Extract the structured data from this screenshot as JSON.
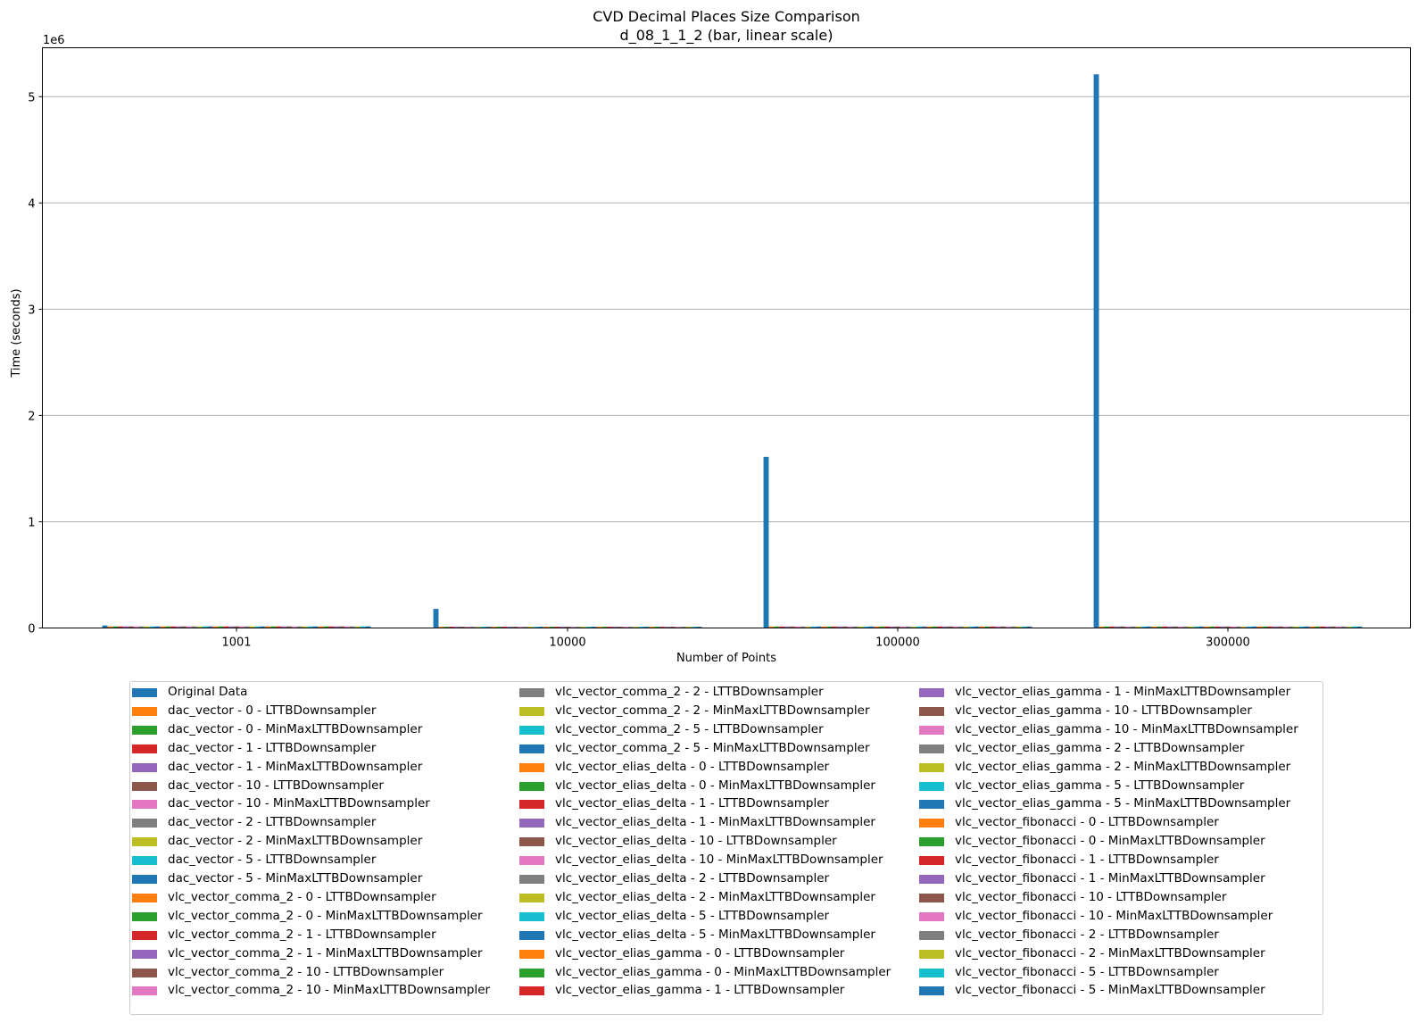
{
  "chart_data": {
    "type": "bar",
    "title": "CVD Decimal Places Size Comparison",
    "subtitle": "d_08_1_1_2 (bar, linear scale)",
    "xlabel": "Number of Points",
    "ylabel": "Time (seconds)",
    "y_offset_label": "1e6",
    "categories": [
      "1001",
      "10000",
      "100000",
      "300000"
    ],
    "ylim": [
      0,
      5460000
    ],
    "yticks": [
      0,
      1,
      2,
      3,
      4,
      5
    ],
    "ytick_multiplier": 1000000,
    "grid": "horizontal",
    "legend_placement": "below plot, 3 columns",
    "palette": [
      "#1f77b4",
      "#ff7f0e",
      "#2ca02c",
      "#d62728",
      "#9467bd",
      "#8c564b",
      "#e377c2",
      "#7f7f7f",
      "#bcbd22",
      "#17becf"
    ],
    "series": [
      {
        "name": "Original Data",
        "values": [
          24000,
          180000,
          1610000,
          5210000
        ]
      },
      {
        "name": "dac_vector - 0 - LTTBDownsampler",
        "values": [
          15000,
          12000,
          14000,
          14000
        ]
      },
      {
        "name": "dac_vector - 0 - MinMaxLTTBDownsampler",
        "values": [
          15000,
          12000,
          14000,
          14000
        ]
      },
      {
        "name": "dac_vector - 1 - LTTBDownsampler",
        "values": [
          15000,
          12000,
          14000,
          14000
        ]
      },
      {
        "name": "dac_vector - 1 - MinMaxLTTBDownsampler",
        "values": [
          15000,
          12000,
          14000,
          14000
        ]
      },
      {
        "name": "dac_vector - 10 - LTTBDownsampler",
        "values": [
          15000,
          12000,
          14000,
          14000
        ]
      },
      {
        "name": "dac_vector - 10 - MinMaxLTTBDownsampler",
        "values": [
          15000,
          12000,
          14000,
          14000
        ]
      },
      {
        "name": "dac_vector - 2 - LTTBDownsampler",
        "values": [
          15000,
          12000,
          14000,
          14000
        ]
      },
      {
        "name": "dac_vector - 2 - MinMaxLTTBDownsampler",
        "values": [
          15000,
          12000,
          14000,
          14000
        ]
      },
      {
        "name": "dac_vector - 5 - LTTBDownsampler",
        "values": [
          15000,
          12000,
          14000,
          14000
        ]
      },
      {
        "name": "dac_vector - 5 - MinMaxLTTBDownsampler",
        "values": [
          15000,
          12000,
          14000,
          14000
        ]
      },
      {
        "name": "vlc_vector_comma_2 - 0 - LTTBDownsampler",
        "values": [
          15000,
          12000,
          14000,
          14000
        ]
      },
      {
        "name": "vlc_vector_comma_2 - 0 - MinMaxLTTBDownsampler",
        "values": [
          15000,
          12000,
          14000,
          14000
        ]
      },
      {
        "name": "vlc_vector_comma_2 - 1 - LTTBDownsampler",
        "values": [
          15000,
          12000,
          14000,
          14000
        ]
      },
      {
        "name": "vlc_vector_comma_2 - 1 - MinMaxLTTBDownsampler",
        "values": [
          15000,
          12000,
          14000,
          14000
        ]
      },
      {
        "name": "vlc_vector_comma_2 - 10 - LTTBDownsampler",
        "values": [
          15000,
          12000,
          14000,
          14000
        ]
      },
      {
        "name": "vlc_vector_comma_2 - 10 - MinMaxLTTBDownsampler",
        "values": [
          15000,
          12000,
          14000,
          14000
        ]
      },
      {
        "name": "vlc_vector_comma_2 - 2 - LTTBDownsampler",
        "values": [
          15000,
          12000,
          14000,
          14000
        ]
      },
      {
        "name": "vlc_vector_comma_2 - 2 - MinMaxLTTBDownsampler",
        "values": [
          15000,
          12000,
          14000,
          14000
        ]
      },
      {
        "name": "vlc_vector_comma_2 - 5 - LTTBDownsampler",
        "values": [
          15000,
          12000,
          14000,
          14000
        ]
      },
      {
        "name": "vlc_vector_comma_2 - 5 - MinMaxLTTBDownsampler",
        "values": [
          15000,
          12000,
          14000,
          14000
        ]
      },
      {
        "name": "vlc_vector_elias_delta - 0 - LTTBDownsampler",
        "values": [
          15000,
          12000,
          14000,
          14000
        ]
      },
      {
        "name": "vlc_vector_elias_delta - 0 - MinMaxLTTBDownsampler",
        "values": [
          15000,
          12000,
          14000,
          14000
        ]
      },
      {
        "name": "vlc_vector_elias_delta - 1 - LTTBDownsampler",
        "values": [
          15000,
          12000,
          14000,
          14000
        ]
      },
      {
        "name": "vlc_vector_elias_delta - 1 - MinMaxLTTBDownsampler",
        "values": [
          15000,
          12000,
          14000,
          14000
        ]
      },
      {
        "name": "vlc_vector_elias_delta - 10 - LTTBDownsampler",
        "values": [
          15000,
          12000,
          14000,
          14000
        ]
      },
      {
        "name": "vlc_vector_elias_delta - 10 - MinMaxLTTBDownsampler",
        "values": [
          15000,
          12000,
          14000,
          14000
        ]
      },
      {
        "name": "vlc_vector_elias_delta - 2 - LTTBDownsampler",
        "values": [
          15000,
          12000,
          14000,
          14000
        ]
      },
      {
        "name": "vlc_vector_elias_delta - 2 - MinMaxLTTBDownsampler",
        "values": [
          15000,
          12000,
          14000,
          14000
        ]
      },
      {
        "name": "vlc_vector_elias_delta - 5 - LTTBDownsampler",
        "values": [
          15000,
          12000,
          14000,
          14000
        ]
      },
      {
        "name": "vlc_vector_elias_delta - 5 - MinMaxLTTBDownsampler",
        "values": [
          15000,
          12000,
          14000,
          14000
        ]
      },
      {
        "name": "vlc_vector_elias_gamma - 0 - LTTBDownsampler",
        "values": [
          15000,
          12000,
          14000,
          14000
        ]
      },
      {
        "name": "vlc_vector_elias_gamma - 0 - MinMaxLTTBDownsampler",
        "values": [
          15000,
          12000,
          14000,
          14000
        ]
      },
      {
        "name": "vlc_vector_elias_gamma - 1 - LTTBDownsampler",
        "values": [
          15000,
          12000,
          14000,
          14000
        ]
      },
      {
        "name": "vlc_vector_elias_gamma - 1 - MinMaxLTTBDownsampler",
        "values": [
          15000,
          12000,
          14000,
          14000
        ]
      },
      {
        "name": "vlc_vector_elias_gamma - 10 - LTTBDownsampler",
        "values": [
          15000,
          12000,
          14000,
          14000
        ]
      },
      {
        "name": "vlc_vector_elias_gamma - 10 - MinMaxLTTBDownsampler",
        "values": [
          15000,
          12000,
          14000,
          14000
        ]
      },
      {
        "name": "vlc_vector_elias_gamma - 2 - LTTBDownsampler",
        "values": [
          15000,
          12000,
          14000,
          14000
        ]
      },
      {
        "name": "vlc_vector_elias_gamma - 2 - MinMaxLTTBDownsampler",
        "values": [
          15000,
          12000,
          14000,
          14000
        ]
      },
      {
        "name": "vlc_vector_elias_gamma - 5 - LTTBDownsampler",
        "values": [
          15000,
          12000,
          14000,
          14000
        ]
      },
      {
        "name": "vlc_vector_elias_gamma - 5 - MinMaxLTTBDownsampler",
        "values": [
          15000,
          12000,
          14000,
          14000
        ]
      },
      {
        "name": "vlc_vector_fibonacci - 0 - LTTBDownsampler",
        "values": [
          15000,
          12000,
          14000,
          14000
        ]
      },
      {
        "name": "vlc_vector_fibonacci - 0 - MinMaxLTTBDownsampler",
        "values": [
          15000,
          12000,
          14000,
          14000
        ]
      },
      {
        "name": "vlc_vector_fibonacci - 1 - LTTBDownsampler",
        "values": [
          15000,
          12000,
          14000,
          14000
        ]
      },
      {
        "name": "vlc_vector_fibonacci - 1 - MinMaxLTTBDownsampler",
        "values": [
          15000,
          12000,
          14000,
          14000
        ]
      },
      {
        "name": "vlc_vector_fibonacci - 10 - LTTBDownsampler",
        "values": [
          15000,
          12000,
          14000,
          14000
        ]
      },
      {
        "name": "vlc_vector_fibonacci - 10 - MinMaxLTTBDownsampler",
        "values": [
          15000,
          12000,
          14000,
          14000
        ]
      },
      {
        "name": "vlc_vector_fibonacci - 2 - LTTBDownsampler",
        "values": [
          15000,
          12000,
          14000,
          14000
        ]
      },
      {
        "name": "vlc_vector_fibonacci - 2 - MinMaxLTTBDownsampler",
        "values": [
          15000,
          12000,
          14000,
          14000
        ]
      },
      {
        "name": "vlc_vector_fibonacci - 5 - LTTBDownsampler",
        "values": [
          15000,
          12000,
          14000,
          14000
        ]
      },
      {
        "name": "vlc_vector_fibonacci - 5 - MinMaxLTTBDownsampler",
        "values": [
          15000,
          12000,
          14000,
          14000
        ]
      }
    ]
  }
}
